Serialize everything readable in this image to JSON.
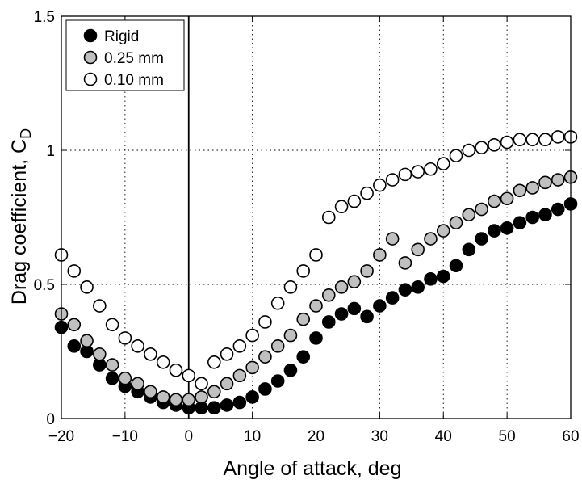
{
  "chart_data": {
    "type": "scatter",
    "xlabel": "Angle of attack, deg",
    "ylabel_main": "Drag coefficient, C",
    "ylabel_sub": "D",
    "xlim": [
      -20,
      60
    ],
    "ylim": [
      0,
      1.5
    ],
    "xticks": [
      -20,
      -10,
      0,
      10,
      20,
      30,
      40,
      50,
      60
    ],
    "yticks": [
      0,
      0.5,
      1,
      1.5
    ],
    "xtick_labels": [
      "−20",
      "−10",
      "0",
      "10",
      "20",
      "30",
      "40",
      "50",
      "60"
    ],
    "ytick_labels": [
      "0",
      "0.5",
      "1",
      "1.5"
    ],
    "grid": true,
    "legend_position": "top-left",
    "series": [
      {
        "name": "Rigid",
        "marker_fill": "#000000",
        "x": [
          -20,
          -18,
          -16,
          -14,
          -12,
          -10,
          -8,
          -6,
          -4,
          -2,
          0,
          2,
          4,
          6,
          8,
          10,
          12,
          14,
          16,
          18,
          20,
          22,
          24,
          26,
          28,
          30,
          32,
          34,
          36,
          38,
          40,
          42,
          44,
          46,
          48,
          50,
          52,
          54,
          56,
          58,
          60
        ],
        "y": [
          0.34,
          0.27,
          0.25,
          0.2,
          0.15,
          0.12,
          0.1,
          0.08,
          0.06,
          0.05,
          0.04,
          0.04,
          0.04,
          0.05,
          0.06,
          0.08,
          0.11,
          0.14,
          0.18,
          0.23,
          0.3,
          0.36,
          0.39,
          0.41,
          0.38,
          0.42,
          0.45,
          0.48,
          0.49,
          0.52,
          0.53,
          0.57,
          0.63,
          0.67,
          0.7,
          0.71,
          0.73,
          0.75,
          0.76,
          0.78,
          0.8
        ]
      },
      {
        "name": "0.25 mm",
        "marker_fill": "#c0c0c0",
        "x": [
          -20,
          -18,
          -16,
          -14,
          -12,
          -10,
          -8,
          -6,
          -4,
          -2,
          0,
          2,
          4,
          6,
          8,
          10,
          12,
          14,
          16,
          18,
          20,
          22,
          24,
          26,
          28,
          30,
          32,
          34,
          36,
          38,
          40,
          42,
          44,
          46,
          48,
          50,
          52,
          54,
          56,
          58,
          60
        ],
        "y": [
          0.39,
          0.35,
          0.29,
          0.24,
          0.2,
          0.15,
          0.13,
          0.1,
          0.08,
          0.07,
          0.07,
          0.08,
          0.1,
          0.13,
          0.16,
          0.19,
          0.23,
          0.27,
          0.31,
          0.37,
          0.42,
          0.46,
          0.49,
          0.51,
          0.55,
          0.61,
          0.67,
          0.58,
          0.63,
          0.67,
          0.7,
          0.73,
          0.76,
          0.78,
          0.81,
          0.82,
          0.85,
          0.86,
          0.88,
          0.89,
          0.9
        ]
      },
      {
        "name": "0.10 mm",
        "marker_fill": "#ffffff",
        "x": [
          -20,
          -18,
          -16,
          -14,
          -12,
          -10,
          -8,
          -6,
          -4,
          -2,
          0,
          2,
          4,
          6,
          8,
          10,
          12,
          14,
          16,
          18,
          20,
          22,
          24,
          26,
          28,
          30,
          32,
          34,
          36,
          38,
          40,
          42,
          44,
          46,
          48,
          50,
          52,
          54,
          56,
          58,
          60
        ],
        "y": [
          0.61,
          0.55,
          0.49,
          0.42,
          0.35,
          0.3,
          0.27,
          0.24,
          0.21,
          0.18,
          0.16,
          0.13,
          0.21,
          0.24,
          0.27,
          0.31,
          0.36,
          0.43,
          0.49,
          0.55,
          0.61,
          0.75,
          0.79,
          0.81,
          0.84,
          0.87,
          0.89,
          0.91,
          0.92,
          0.93,
          0.95,
          0.98,
          1.0,
          1.01,
          1.02,
          1.03,
          1.04,
          1.04,
          1.04,
          1.05,
          1.05
        ]
      }
    ]
  }
}
